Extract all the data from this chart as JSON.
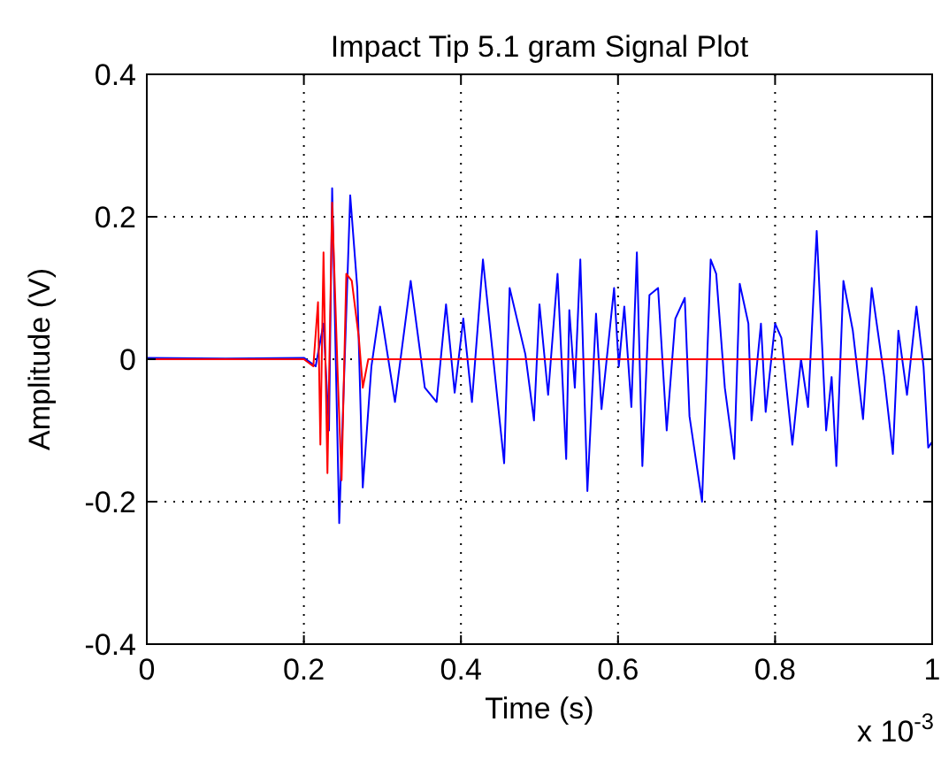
{
  "chart_data": {
    "type": "line",
    "title": "Impact Tip 5.1 gram Signal Plot",
    "xlabel": "Time (s)",
    "ylabel": "Amplitude (V)",
    "annotations": [
      "x 10$^{-3}$"
    ],
    "xlim": [
      0,
      1
    ],
    "xticks": [
      0,
      0.2,
      0.4,
      0.6,
      0.8,
      1
    ],
    "ylim": [
      -0.4,
      0.4
    ],
    "yticks": [
      -0.4,
      -0.2,
      0,
      0.2,
      0.4
    ],
    "grid": true,
    "line_style": "solid",
    "marker": "none",
    "series": [
      {
        "color": "#0000ff",
        "x": [
          0,
          0.1,
          0.2,
          0.215,
          0.225,
          0.232,
          0.236,
          0.245,
          0.259,
          0.268,
          0.275,
          0.286,
          0.297,
          0.316,
          0.336,
          0.354,
          0.369,
          0.381,
          0.392,
          0.403,
          0.414,
          0.428,
          0.455,
          0.462,
          0.482,
          0.493,
          0.5,
          0.511,
          0.523,
          0.534,
          0.538,
          0.545,
          0.552,
          0.561,
          0.572,
          0.579,
          0.595,
          0.601,
          0.608,
          0.617,
          0.624,
          0.631,
          0.64,
          0.651,
          0.662,
          0.673,
          0.685,
          0.691,
          0.707,
          0.718,
          0.725,
          0.736,
          0.748,
          0.755,
          0.766,
          0.77,
          0.782,
          0.788,
          0.8,
          0.808,
          0.822,
          0.833,
          0.842,
          0.853,
          0.865,
          0.872,
          0.878,
          0.887,
          0.899,
          0.912,
          0.923,
          0.939,
          0.95,
          0.957,
          0.968,
          0.98,
          0.989,
          0.995,
          1
        ],
        "values": [
          0.002,
          0.001,
          0.002,
          -0.01,
          0.05,
          -0.1,
          0.24,
          -0.23,
          0.23,
          0.1,
          -0.18,
          -0.01,
          0.074,
          -0.06,
          0.11,
          -0.04,
          -0.06,
          0.077,
          -0.047,
          0.057,
          -0.06,
          0.14,
          -0.146,
          0.1,
          0.007,
          -0.086,
          0.077,
          -0.05,
          0.12,
          -0.14,
          0.069,
          -0.04,
          0.14,
          -0.185,
          0.064,
          -0.07,
          0.1,
          -0.01,
          0.074,
          -0.067,
          0.15,
          -0.15,
          0.09,
          0.1,
          -0.1,
          0.057,
          0.086,
          -0.08,
          -0.2,
          0.14,
          0.12,
          -0.04,
          -0.14,
          0.106,
          0.05,
          -0.086,
          0.05,
          -0.074,
          0.05,
          0.03,
          -0.12,
          0,
          -0.067,
          0.18,
          -0.1,
          -0.025,
          -0.15,
          0.11,
          0.04,
          -0.084,
          0.1,
          -0.025,
          -0.133,
          0.04,
          -0.05,
          0.074,
          -0.01,
          -0.124,
          -0.116
        ]
      },
      {
        "color": "#ff0000",
        "x": [
          0,
          0.1,
          0.2,
          0.212,
          0.218,
          0.221,
          0.225,
          0.23,
          0.236,
          0.243,
          0.248,
          0.254,
          0.261,
          0.27,
          0.275,
          0.282,
          0.3,
          0.5,
          1
        ],
        "values": [
          0,
          0,
          0,
          -0.01,
          0.08,
          -0.12,
          0.15,
          -0.16,
          0.22,
          -0.02,
          -0.17,
          0.12,
          0.11,
          0.03,
          -0.04,
          0,
          0,
          0,
          0
        ]
      }
    ]
  }
}
